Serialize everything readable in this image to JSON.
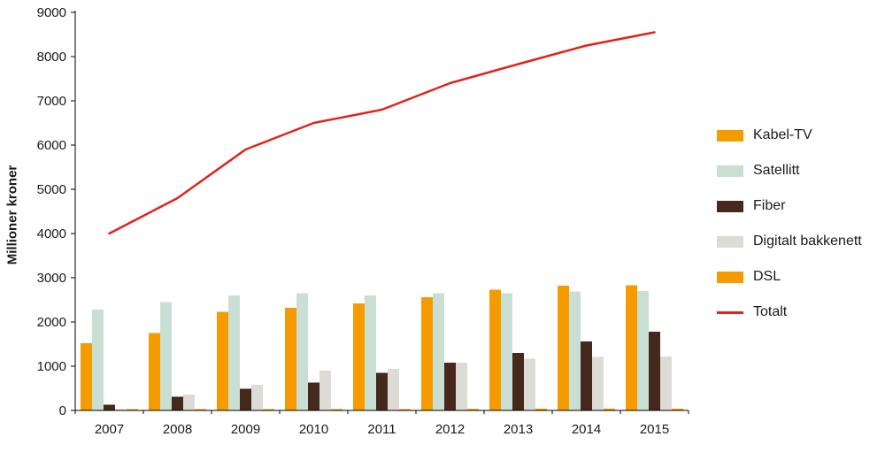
{
  "chart_data": {
    "type": "bar",
    "title": "",
    "xlabel": "",
    "ylabel": "Millioner kroner",
    "ylim": [
      0,
      9000
    ],
    "ytick_step": 1000,
    "grid": false,
    "legend_position": "right",
    "categories": [
      "2007",
      "2008",
      "2009",
      "2010",
      "2011",
      "2012",
      "2013",
      "2014",
      "2015"
    ],
    "series": [
      {
        "name": "Kabel-TV",
        "type": "bar",
        "color": "#F59B00",
        "values": [
          1520,
          1750,
          2230,
          2320,
          2420,
          2560,
          2730,
          2820,
          2830
        ]
      },
      {
        "name": "Satellitt",
        "type": "bar",
        "color": "#C9DFD3",
        "values": [
          2280,
          2450,
          2600,
          2650,
          2600,
          2650,
          2650,
          2690,
          2700
        ]
      },
      {
        "name": "Fiber",
        "type": "bar",
        "color": "#44291C",
        "values": [
          130,
          310,
          490,
          630,
          850,
          1080,
          1300,
          1560,
          1780
        ]
      },
      {
        "name": "Digitalt bakkenett",
        "type": "bar",
        "color": "#DCDBD6",
        "values": [
          30,
          360,
          580,
          900,
          940,
          1080,
          1170,
          1210,
          1220
        ]
      },
      {
        "name": "DSL",
        "type": "bar",
        "color": "#F59B00",
        "values": [
          30,
          30,
          30,
          30,
          30,
          35,
          40,
          40,
          40
        ]
      },
      {
        "name": "Totalt",
        "type": "line",
        "color": "#E2231A",
        "values": [
          4000,
          4800,
          5900,
          6500,
          6800,
          7400,
          7830,
          8250,
          8550
        ]
      }
    ],
    "axis_color": "#000000",
    "tick_label_fontsize": 15
  }
}
